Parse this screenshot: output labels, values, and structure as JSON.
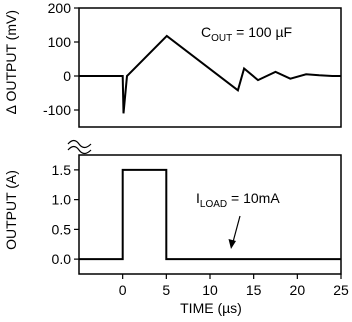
{
  "chart_data": [
    {
      "type": "line",
      "xlabel": "",
      "ylabel": "∆ OUTPUT (mV)",
      "xlim": [
        -5,
        25
      ],
      "ylim": [
        -150,
        200
      ],
      "yticks": [
        200,
        100,
        0,
        -100
      ],
      "annotation": {
        "main": "C",
        "sub": "OUT",
        "rest": " = 100 µF"
      },
      "series": [
        {
          "x": [
            -5,
            0,
            0.1,
            0.5,
            5.05,
            13.2,
            13.9,
            15.5,
            17.5,
            19.2,
            21,
            22.5,
            24,
            25
          ],
          "y": [
            0,
            0,
            -110,
            0,
            118,
            -42,
            22,
            -12,
            12,
            -8,
            5,
            2,
            0,
            0
          ]
        }
      ]
    },
    {
      "type": "line",
      "xlabel": "TIME (µs)",
      "ylabel": "OUTPUT (A)",
      "xlim": [
        -5,
        25
      ],
      "ylim": [
        -0.25,
        1.75
      ],
      "xticks": [
        0,
        5,
        10,
        15,
        20,
        25
      ],
      "yticks": [
        "1.5",
        "1.0",
        "0.5",
        "0.0"
      ],
      "annotation": {
        "main": "I",
        "sub": "LOAD",
        "rest": " = 10mA"
      },
      "series": [
        {
          "x": [
            -5,
            0,
            0,
            5,
            5,
            25
          ],
          "y": [
            0,
            0,
            1.5,
            1.5,
            0,
            0
          ]
        }
      ]
    }
  ]
}
